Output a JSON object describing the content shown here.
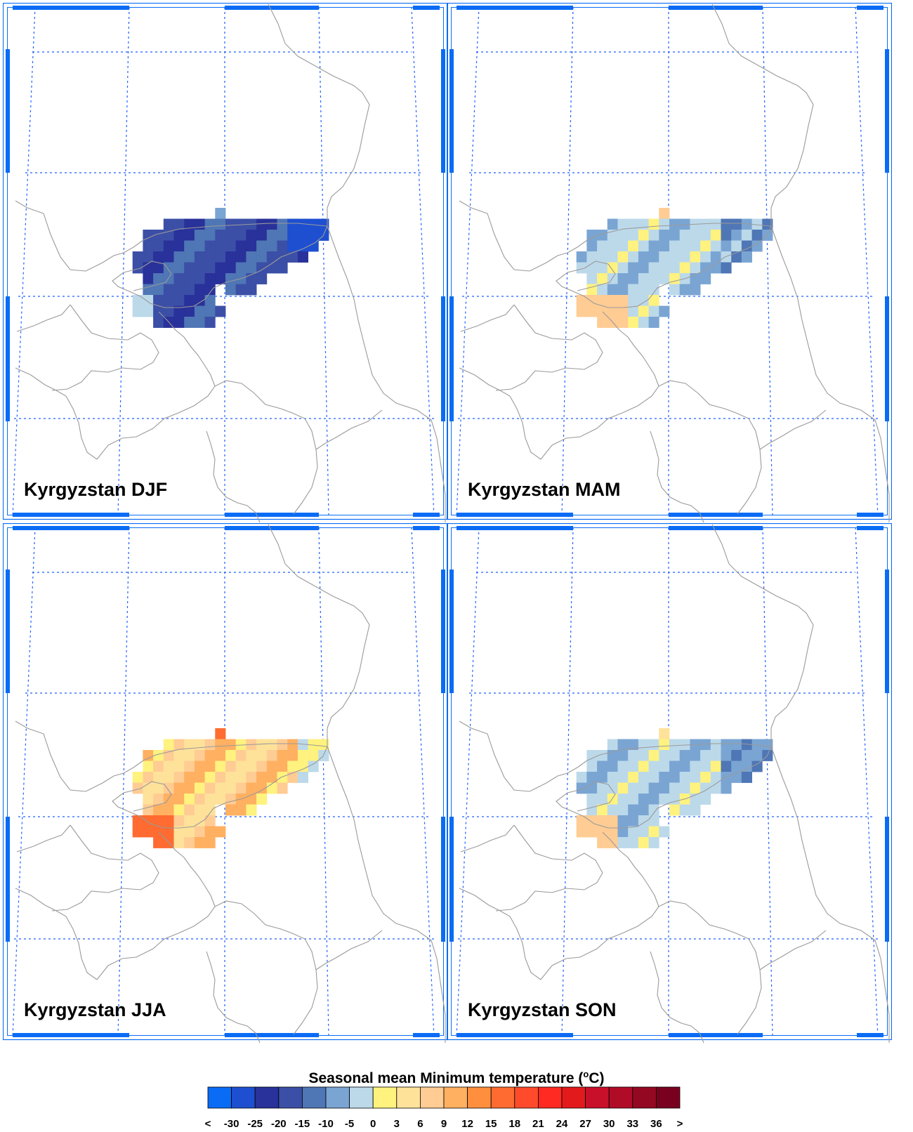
{
  "panels": [
    {
      "id": "djf",
      "title": "Kyrgyzstan DJF"
    },
    {
      "id": "mam",
      "title": "Kyrgyzstan MAM"
    },
    {
      "id": "jja",
      "title": "Kyrgyzstan JJA"
    },
    {
      "id": "son",
      "title": "Kyrgyzstan SON"
    }
  ],
  "colorbar": {
    "title_prefix": "Seasonal mean Minimum temperature (",
    "title_sup": "o",
    "title_suffix": "C)",
    "tick_labels": [
      "<",
      "-30",
      "-25",
      "-20",
      "-15",
      "-10",
      "-5",
      "0",
      "3",
      "6",
      "9",
      "12",
      "15",
      "18",
      "21",
      "24",
      "27",
      "30",
      "33",
      "36",
      ">"
    ],
    "colors": [
      "#0a6cf5",
      "#1e4fd0",
      "#29319a",
      "#3b4fa6",
      "#4f76b5",
      "#7aa5d3",
      "#bcd9ea",
      "#fff27f",
      "#ffe29a",
      "#ffcc94",
      "#ffb061",
      "#ff8f3e",
      "#ff6b30",
      "#ff4b2b",
      "#ff2a22",
      "#e31a1c",
      "#c8102a",
      "#b00c28",
      "#950822",
      "#7a0020"
    ]
  },
  "colors": {
    "frame_blue": "#0a6cf5",
    "gridline": "#1f5fff",
    "border_line": "#9a9a9a"
  }
}
